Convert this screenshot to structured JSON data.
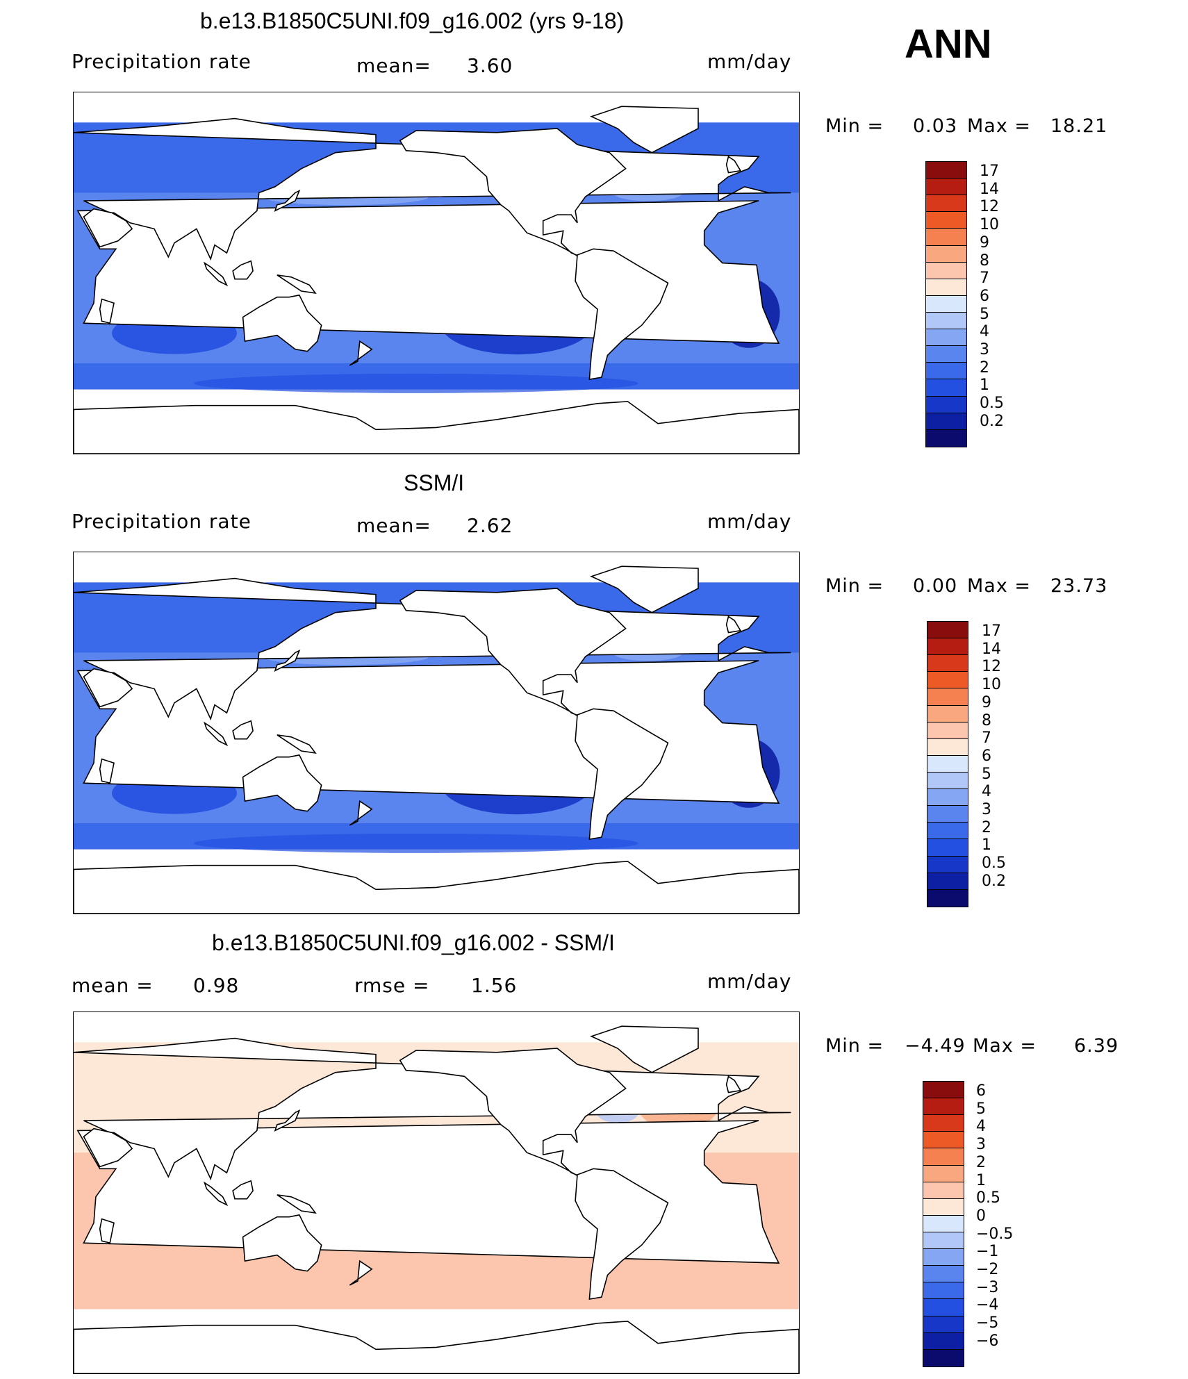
{
  "page_title": "ANN",
  "colors": {
    "precip_scale": [
      "#0b0b6e",
      "#0d1fa3",
      "#1737c8",
      "#2350e0",
      "#3a6aea",
      "#5b85ee",
      "#85a6f3",
      "#b0c7f8",
      "#d8e7fb",
      "#fde7d6",
      "#fbc6ad",
      "#f8a77f",
      "#f4814f",
      "#ee5a25",
      "#d8391a",
      "#b51d12",
      "#8a0d0d"
    ],
    "diff_scale": [
      "#0b0b6e",
      "#0d1fa3",
      "#1737c8",
      "#2350e0",
      "#3a6aea",
      "#5b85ee",
      "#85a6f3",
      "#b0c7f8",
      "#d8e7fb",
      "#fde7d6",
      "#fbc6ad",
      "#f8a77f",
      "#f4814f",
      "#ee5a25",
      "#d8391a",
      "#b51d12",
      "#8a0d0d"
    ],
    "land": "#ffffff",
    "coast": "#000000"
  },
  "panels": [
    {
      "title": "b.e13.B1850C5UNI.f09_g16.002 (yrs 9-18)",
      "left_label": "Precipitation  rate",
      "mid_label": "mean=",
      "mid_value": "3.60",
      "units": "mm/day",
      "min_label": "Min  =",
      "min_value": "0.03",
      "max_label": "Max  =",
      "max_value": "18.21",
      "ticks": [
        "17",
        "14",
        "12",
        "10",
        "9",
        "8",
        "7",
        "6",
        "5",
        "4",
        "3",
        "2",
        "1",
        "0.5",
        "0.2"
      ]
    },
    {
      "title": "SSM/I",
      "left_label": "Precipitation  rate",
      "mid_label": "mean=",
      "mid_value": "2.62",
      "units": "mm/day",
      "min_label": "Min  =",
      "min_value": "0.00",
      "max_label": "Max  =",
      "max_value": "23.73",
      "ticks": [
        "17",
        "14",
        "12",
        "10",
        "9",
        "8",
        "7",
        "6",
        "5",
        "4",
        "3",
        "2",
        "1",
        "0.5",
        "0.2"
      ]
    },
    {
      "title": "b.e13.B1850C5UNI.f09_g16.002 - SSM/I",
      "left_label": "mean  =",
      "left_value": "0.98",
      "mid_label": "rmse  =",
      "mid_value": "1.56",
      "units": "mm/day",
      "min_label": "Min  =",
      "min_value": "−4.49",
      "max_label": "Max  =",
      "max_value": "6.39",
      "ticks": [
        "6",
        "5",
        "4",
        "3",
        "2",
        "1",
        "0.5",
        "0",
        "−0.5",
        "−1",
        "−2",
        "−3",
        "−4",
        "−5",
        "−6"
      ]
    }
  ]
}
